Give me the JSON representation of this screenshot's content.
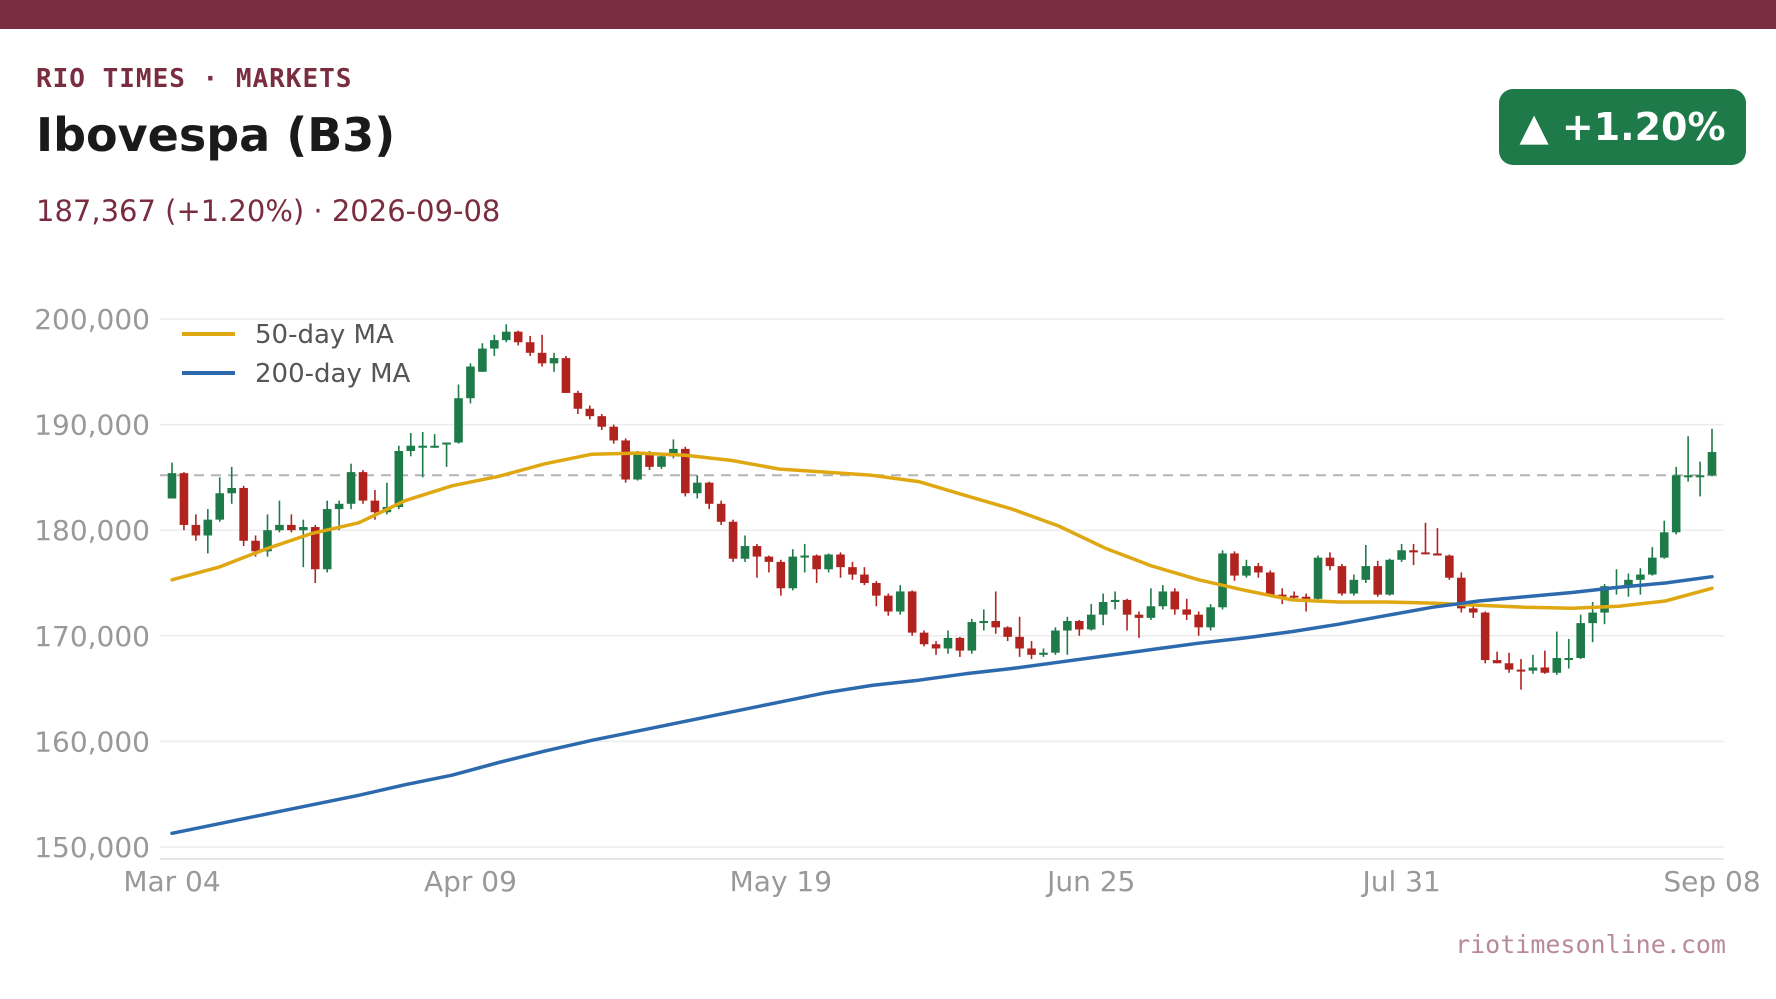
{
  "header": {
    "kicker": "RIO TIMES · MARKETS",
    "title": "Ibovespa (B3)",
    "subtitle": "187,367 (+1.20%)  ·  2026-09-08",
    "badge": "▲ +1.20%",
    "source": "riotimesonline.com"
  },
  "colors": {
    "brand": "#7a2c40",
    "up": "#1e7a48",
    "down": "#b0231e",
    "ma50": "#dfa812",
    "ma200": "#2d6aad",
    "grid": "#ececec",
    "axis_text": "#999999",
    "reference": "#b4b4b4",
    "source_text": "#b88a98"
  },
  "chart_data": {
    "type": "candlestick",
    "title": "Ibovespa (B3)",
    "last_close": 187367,
    "change_pct": 1.2,
    "reference_line": 185200,
    "ylim": [
      149000,
      201000
    ],
    "y_ticks": [
      150000,
      160000,
      170000,
      180000,
      190000,
      200000
    ],
    "y_tick_labels": [
      "150,000",
      "160,000",
      "170,000",
      "180,000",
      "190,000",
      "200,000"
    ],
    "x_ticks": [
      {
        "index": 0,
        "label": "Mar 04"
      },
      {
        "index": 25,
        "label": "Apr 09"
      },
      {
        "index": 51,
        "label": "May 19"
      },
      {
        "index": 77,
        "label": "Jun 25"
      },
      {
        "index": 103,
        "label": "Jul 31"
      },
      {
        "index": 129,
        "label": "Sep 08"
      }
    ],
    "legend": {
      "position": "top-left",
      "entries": [
        "50-day MA",
        "200-day MA"
      ]
    },
    "grid": true,
    "ohlc": [
      [
        183000,
        186400,
        183000,
        185400
      ],
      [
        185400,
        185500,
        180000,
        180500
      ],
      [
        180500,
        181500,
        179000,
        179500
      ],
      [
        179500,
        182000,
        177800,
        181000
      ],
      [
        181000,
        185000,
        180800,
        183500
      ],
      [
        183500,
        186000,
        182500,
        184000
      ],
      [
        184000,
        184200,
        178500,
        179000
      ],
      [
        179000,
        179500,
        177500,
        178000
      ],
      [
        178000,
        181500,
        177500,
        180000
      ],
      [
        180000,
        182800,
        179800,
        180500
      ],
      [
        180500,
        181500,
        179800,
        180000
      ],
      [
        180000,
        181000,
        176500,
        180300
      ],
      [
        180300,
        180500,
        175000,
        176300
      ],
      [
        176300,
        182800,
        176000,
        182000
      ],
      [
        182000,
        182800,
        180000,
        182500
      ],
      [
        182500,
        186300,
        182000,
        185500
      ],
      [
        185500,
        185700,
        182500,
        182800
      ],
      [
        182800,
        183800,
        181000,
        181700
      ],
      [
        181700,
        184500,
        181500,
        182200
      ],
      [
        182200,
        188000,
        182000,
        187500
      ],
      [
        187500,
        189200,
        187000,
        188000
      ],
      [
        188000,
        189300,
        185000,
        188000
      ],
      [
        188000,
        189100,
        187800,
        188000
      ],
      [
        188200,
        188300,
        186000,
        188300
      ],
      [
        188300,
        193800,
        188200,
        192500
      ],
      [
        192500,
        195800,
        192000,
        195500
      ],
      [
        195000,
        197700,
        195000,
        197200
      ],
      [
        197200,
        198500,
        196500,
        198000
      ],
      [
        198000,
        199500,
        197800,
        198800
      ],
      [
        198800,
        198900,
        197500,
        197800
      ],
      [
        197800,
        198400,
        196500,
        196800
      ],
      [
        196800,
        198500,
        195500,
        195800
      ],
      [
        195800,
        196800,
        195000,
        196300
      ],
      [
        196300,
        196500,
        193000,
        193000
      ],
      [
        193000,
        193200,
        191000,
        191500
      ],
      [
        191500,
        191800,
        190500,
        190800
      ],
      [
        190800,
        191000,
        189500,
        189800
      ],
      [
        189800,
        190000,
        188200,
        188500
      ],
      [
        188500,
        188700,
        184500,
        184800
      ],
      [
        184800,
        187500,
        184700,
        187300
      ],
      [
        187300,
        187500,
        185700,
        186000
      ],
      [
        186000,
        187300,
        185800,
        187000
      ],
      [
        187000,
        188600,
        186800,
        187700
      ],
      [
        187700,
        187900,
        183200,
        183500
      ],
      [
        183500,
        185200,
        183000,
        184500
      ],
      [
        184500,
        184600,
        182000,
        182500
      ],
      [
        182500,
        182800,
        180500,
        180800
      ],
      [
        180800,
        181000,
        177000,
        177300
      ],
      [
        177300,
        179500,
        177000,
        178500
      ],
      [
        178500,
        178700,
        175500,
        177500
      ],
      [
        177500,
        177600,
        176000,
        177000
      ],
      [
        177000,
        177200,
        173800,
        174500
      ],
      [
        174500,
        178200,
        174300,
        177500
      ],
      [
        177500,
        178700,
        176000,
        177600
      ],
      [
        177600,
        177700,
        175000,
        176300
      ],
      [
        176300,
        177800,
        176000,
        177700
      ],
      [
        177700,
        177900,
        175500,
        176500
      ],
      [
        176500,
        177000,
        175300,
        175800
      ],
      [
        175800,
        176500,
        174800,
        175000
      ],
      [
        175000,
        175200,
        172800,
        173800
      ],
      [
        173800,
        174000,
        171900,
        172300
      ],
      [
        172300,
        174800,
        172000,
        174200
      ],
      [
        174200,
        174300,
        170000,
        170300
      ],
      [
        170300,
        170500,
        169000,
        169200
      ],
      [
        169200,
        169500,
        168200,
        168800
      ],
      [
        168800,
        170500,
        168300,
        169800
      ],
      [
        169800,
        169900,
        168000,
        168600
      ],
      [
        168600,
        171600,
        168300,
        171300
      ],
      [
        171300,
        172500,
        170500,
        171400
      ],
      [
        171400,
        174200,
        170200,
        170800
      ],
      [
        170800,
        170900,
        169500,
        169900
      ],
      [
        169900,
        171800,
        168000,
        168800
      ],
      [
        168800,
        169500,
        167800,
        168200
      ],
      [
        168200,
        168800,
        168000,
        168400
      ],
      [
        168400,
        170800,
        168200,
        170500
      ],
      [
        170500,
        171800,
        168200,
        171400
      ],
      [
        171400,
        171500,
        170000,
        170600
      ],
      [
        170600,
        173000,
        170500,
        172000
      ],
      [
        172000,
        174000,
        171000,
        173200
      ],
      [
        173200,
        174200,
        172500,
        173400
      ],
      [
        173400,
        173500,
        170500,
        172000
      ],
      [
        172000,
        172300,
        169800,
        171700
      ],
      [
        171700,
        174500,
        171500,
        172800
      ],
      [
        172800,
        174800,
        172500,
        174200
      ],
      [
        174200,
        174500,
        172000,
        172500
      ],
      [
        172500,
        173500,
        171500,
        172000
      ],
      [
        172000,
        172300,
        170000,
        170800
      ],
      [
        170800,
        173000,
        170500,
        172700
      ],
      [
        172700,
        178100,
        172500,
        177800
      ],
      [
        177800,
        178000,
        175200,
        175700
      ],
      [
        175700,
        177200,
        175500,
        176600
      ],
      [
        176600,
        176900,
        175500,
        176000
      ],
      [
        176000,
        176200,
        173700,
        173900
      ],
      [
        173900,
        174500,
        173000,
        173800
      ],
      [
        173800,
        174200,
        173500,
        173700
      ],
      [
        173700,
        174000,
        172300,
        173500
      ],
      [
        173500,
        177600,
        173400,
        177400
      ],
      [
        177400,
        177900,
        176200,
        176600
      ],
      [
        176600,
        176800,
        173800,
        174000
      ],
      [
        174000,
        175800,
        173800,
        175300
      ],
      [
        175300,
        178600,
        175000,
        176600
      ],
      [
        176600,
        177100,
        173700,
        173900
      ],
      [
        173900,
        177300,
        173800,
        177200
      ],
      [
        177200,
        178700,
        177000,
        178100
      ],
      [
        178100,
        178700,
        176700,
        177900
      ],
      [
        177900,
        180700,
        177700,
        177800
      ],
      [
        177800,
        180200,
        177600,
        177600
      ],
      [
        177600,
        177700,
        175300,
        175500
      ],
      [
        175500,
        176000,
        172200,
        172600
      ],
      [
        172600,
        172800,
        171700,
        172200
      ],
      [
        172200,
        172300,
        167400,
        167700
      ],
      [
        167700,
        168500,
        167400,
        167400
      ],
      [
        167400,
        168400,
        166500,
        166800
      ],
      [
        166800,
        167800,
        164900,
        166700
      ],
      [
        166700,
        168200,
        166400,
        167000
      ],
      [
        167000,
        168600,
        166400,
        166500
      ],
      [
        166500,
        170400,
        166300,
        167900
      ],
      [
        167900,
        169700,
        166900,
        167900
      ],
      [
        167900,
        172000,
        167800,
        171200
      ],
      [
        171200,
        173200,
        169400,
        172200
      ],
      [
        172200,
        174900,
        171100,
        174700
      ],
      [
        174700,
        176300,
        173900,
        174700
      ],
      [
        174700,
        175900,
        173700,
        175300
      ],
      [
        175300,
        176400,
        173900,
        175800
      ],
      [
        175800,
        178400,
        175700,
        177400
      ],
      [
        177400,
        180900,
        177300,
        179800
      ],
      [
        179800,
        186000,
        179600,
        185200
      ],
      [
        185200,
        188900,
        184600,
        185200
      ],
      [
        185200,
        186500,
        183200,
        185200
      ],
      [
        185200,
        189600,
        185100,
        187400
      ]
    ],
    "series": [
      {
        "name": "50-day MA",
        "start_index": 0,
        "values": [
          175300,
          176500,
          178200,
          179700,
          180700,
          182800,
          184200,
          185100,
          186300,
          187200,
          187300,
          187100,
          186600,
          185800,
          185500,
          185200,
          184600,
          183300,
          182000,
          180400,
          178300,
          176600,
          175300,
          174300,
          173400,
          173200,
          173200,
          173100,
          172900,
          172700,
          172600,
          172800,
          173300,
          174500
        ]
      },
      {
        "name": "200-day MA",
        "start_index": 0,
        "values": [
          151300,
          152200,
          153100,
          154000,
          154900,
          155900,
          156800,
          158000,
          159100,
          160100,
          161000,
          161900,
          162800,
          163700,
          164600,
          165300,
          165800,
          166400,
          166900,
          167500,
          168100,
          168700,
          169300,
          169800,
          170400,
          171100,
          171900,
          172700,
          173300,
          173700,
          174100,
          174600,
          175000,
          175600
        ]
      }
    ]
  }
}
